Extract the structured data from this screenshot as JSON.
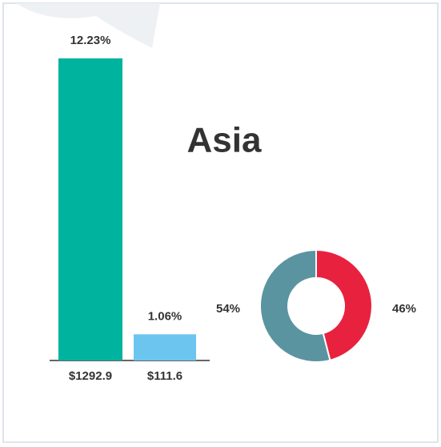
{
  "title": "Asia",
  "chart_data": [
    {
      "type": "bar",
      "categories": [
        "$1292.9",
        "$111.6"
      ],
      "values": [
        12.23,
        1.06
      ],
      "value_labels": [
        "12.23%",
        "1.06%"
      ],
      "colors": [
        "#00b39e",
        "#6cc5ef"
      ],
      "ylim": [
        0,
        12.97
      ]
    },
    {
      "type": "donut",
      "values": [
        46,
        54
      ],
      "value_labels": [
        "46%",
        "54%"
      ],
      "colors": [
        "#e8213f",
        "#5a94a1"
      ]
    }
  ]
}
